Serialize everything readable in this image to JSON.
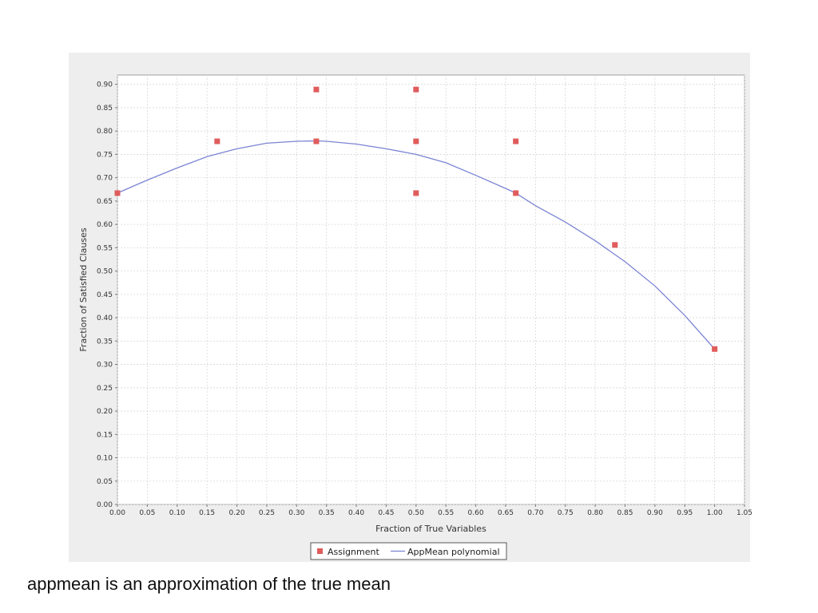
{
  "caption": "appmean is an approximation of the true mean",
  "colors": {
    "background": "#ffffff",
    "panel": "#eeeeee",
    "plot_background": "#ffffff",
    "grid": "#d8d8d8",
    "assignment_marker": "#e05c5c",
    "polynomial_line": "#7b84d3"
  },
  "chart_data": {
    "type": "scatter",
    "title": "",
    "xlabel": "Fraction of True Variables",
    "ylabel": "Fraction of Satisfied Clauses",
    "xlim": [
      0,
      1.05
    ],
    "ylim": [
      0,
      0.92
    ],
    "xticks": [
      "0.00",
      "0.05",
      "0.10",
      "0.15",
      "0.20",
      "0.25",
      "0.30",
      "0.35",
      "0.40",
      "0.45",
      "0.50",
      "0.55",
      "0.60",
      "0.65",
      "0.70",
      "0.75",
      "0.80",
      "0.85",
      "0.90",
      "0.95",
      "1.00",
      "1.05"
    ],
    "yticks": [
      "0.00",
      "0.05",
      "0.10",
      "0.15",
      "0.20",
      "0.25",
      "0.30",
      "0.35",
      "0.40",
      "0.45",
      "0.50",
      "0.55",
      "0.60",
      "0.65",
      "0.70",
      "0.75",
      "0.80",
      "0.85",
      "0.90"
    ],
    "grid": true,
    "legend_position": "bottom",
    "series": [
      {
        "name": "Assignment",
        "kind": "scatter",
        "marker": "square",
        "points": [
          [
            0.0,
            0.667
          ],
          [
            0.167,
            0.778
          ],
          [
            0.333,
            0.889
          ],
          [
            0.333,
            0.778
          ],
          [
            0.5,
            0.889
          ],
          [
            0.5,
            0.778
          ],
          [
            0.5,
            0.667
          ],
          [
            0.667,
            0.778
          ],
          [
            0.667,
            0.667
          ],
          [
            0.833,
            0.556
          ],
          [
            1.0,
            0.333
          ]
        ]
      },
      {
        "name": "AppMean polynomial",
        "kind": "line",
        "points": [
          [
            0.0,
            0.667
          ],
          [
            0.05,
            0.695
          ],
          [
            0.1,
            0.721
          ],
          [
            0.15,
            0.745
          ],
          [
            0.2,
            0.762
          ],
          [
            0.25,
            0.774
          ],
          [
            0.3,
            0.778
          ],
          [
            0.333,
            0.779
          ],
          [
            0.35,
            0.778
          ],
          [
            0.4,
            0.772
          ],
          [
            0.45,
            0.762
          ],
          [
            0.5,
            0.75
          ],
          [
            0.55,
            0.732
          ],
          [
            0.6,
            0.705
          ],
          [
            0.65,
            0.677
          ],
          [
            0.667,
            0.667
          ],
          [
            0.7,
            0.64
          ],
          [
            0.75,
            0.605
          ],
          [
            0.8,
            0.565
          ],
          [
            0.85,
            0.52
          ],
          [
            0.9,
            0.468
          ],
          [
            0.95,
            0.405
          ],
          [
            1.0,
            0.333
          ]
        ]
      }
    ]
  }
}
